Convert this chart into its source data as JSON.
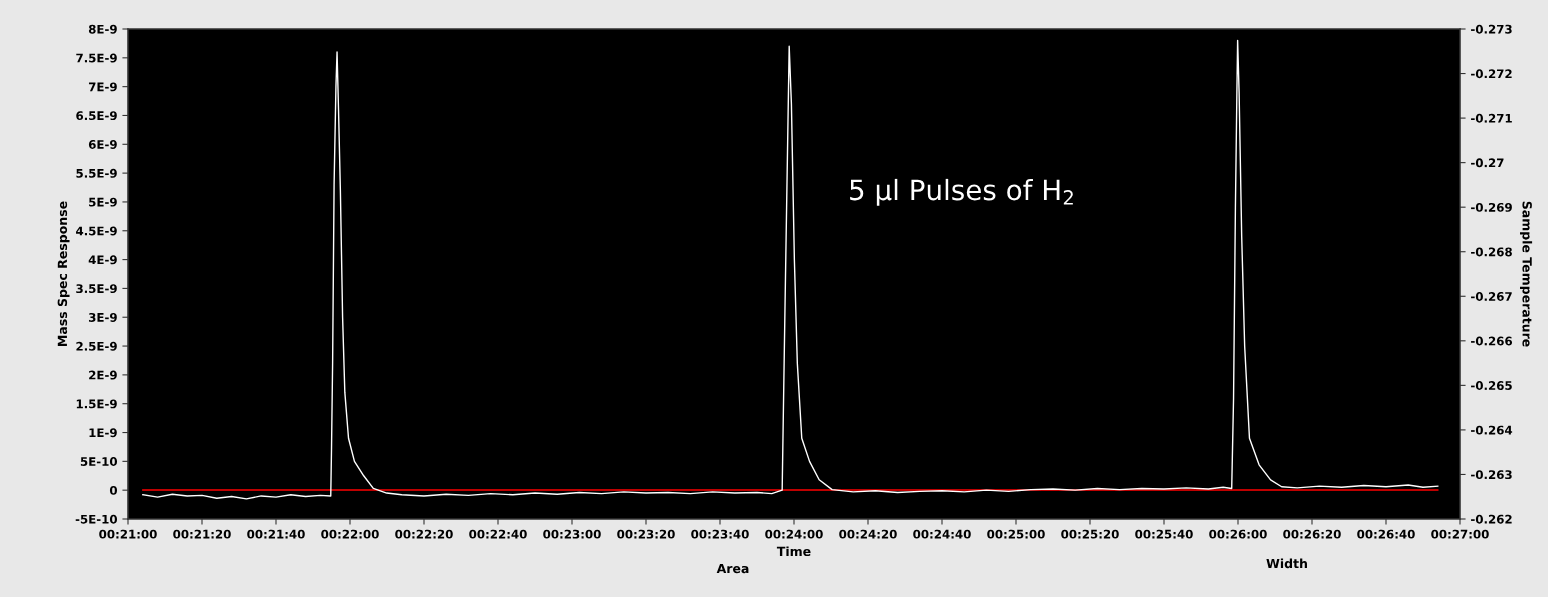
{
  "chart_data": {
    "type": "line",
    "xlabel": "Time",
    "ylabel": "Mass Spec Response",
    "y2label": "Sample Temperature",
    "annotations": [
      "5 μl Pulses of H$_{2}$",
      "Area",
      "Width"
    ],
    "xlim": [
      1260,
      1620
    ],
    "xticks": [
      {
        "value": 1260,
        "label": "00:21:00"
      },
      {
        "value": 1280,
        "label": "00:21:20"
      },
      {
        "value": 1300,
        "label": "00:21:40"
      },
      {
        "value": 1320,
        "label": "00:22:00"
      },
      {
        "value": 1340,
        "label": "00:22:20"
      },
      {
        "value": 1360,
        "label": "00:22:40"
      },
      {
        "value": 1380,
        "label": "00:23:00"
      },
      {
        "value": 1400,
        "label": "00:23:20"
      },
      {
        "value": 1420,
        "label": "00:23:40"
      },
      {
        "value": 1440,
        "label": "00:24:00"
      },
      {
        "value": 1460,
        "label": "00:24:20"
      },
      {
        "value": 1480,
        "label": "00:24:40"
      },
      {
        "value": 1500,
        "label": "00:25:00"
      },
      {
        "value": 1520,
        "label": "00:25:20"
      },
      {
        "value": 1540,
        "label": "00:25:40"
      },
      {
        "value": 1560,
        "label": "00:26:00"
      },
      {
        "value": 1580,
        "label": "00:26:20"
      },
      {
        "value": 1600,
        "label": "00:26:40"
      },
      {
        "value": 1620,
        "label": "00:27:00"
      }
    ],
    "ylim": [
      -5e-10,
      8e-09
    ],
    "yticks": [
      {
        "value": -5e-10,
        "label": "-5E-10"
      },
      {
        "value": 0,
        "label": "0"
      },
      {
        "value": 5e-10,
        "label": "5E-10"
      },
      {
        "value": 1e-09,
        "label": "1E-9"
      },
      {
        "value": 1.5e-09,
        "label": "1.5E-9"
      },
      {
        "value": 2e-09,
        "label": "2E-9"
      },
      {
        "value": 2.5e-09,
        "label": "2.5E-9"
      },
      {
        "value": 3e-09,
        "label": "3E-9"
      },
      {
        "value": 3.5e-09,
        "label": "3.5E-9"
      },
      {
        "value": 4e-09,
        "label": "4E-9"
      },
      {
        "value": 4.5e-09,
        "label": "4.5E-9"
      },
      {
        "value": 5e-09,
        "label": "5E-9"
      },
      {
        "value": 5.5e-09,
        "label": "5.5E-9"
      },
      {
        "value": 6e-09,
        "label": "6E-9"
      },
      {
        "value": 6.5e-09,
        "label": "6.5E-9"
      },
      {
        "value": 7e-09,
        "label": "7E-9"
      },
      {
        "value": 7.5e-09,
        "label": "7.5E-9"
      },
      {
        "value": 8e-09,
        "label": "8E-9"
      }
    ],
    "y2lim": [
      -0.262,
      -0.273
    ],
    "y2ticks": [
      -0.262,
      -0.263,
      -0.264,
      -0.265,
      -0.266,
      -0.267,
      -0.268,
      -0.269,
      -0.27,
      -0.271,
      -0.272,
      -0.273
    ],
    "grid": false,
    "marker": "none",
    "line_style": "solid",
    "series": [
      {
        "color": "#ffffff",
        "x": [
          1264,
          1268,
          1272,
          1276,
          1280,
          1284,
          1288,
          1292,
          1296,
          1300,
          1304,
          1308,
          1312,
          1314.8,
          1315.0,
          1315.3,
          1315.7,
          1316.2,
          1316.5,
          1316.9,
          1317.4,
          1318.0,
          1318.6,
          1319.6,
          1321.2,
          1323.7,
          1326.3,
          1329.9,
          1334,
          1340,
          1346,
          1352,
          1358,
          1364,
          1370,
          1376,
          1382,
          1388,
          1394,
          1400,
          1406,
          1412,
          1418,
          1424,
          1430,
          1434,
          1436.8,
          1437.5,
          1438.0,
          1438.7,
          1439.3,
          1440.1,
          1440.9,
          1442.1,
          1444.2,
          1446.8,
          1450.3,
          1456,
          1462,
          1468,
          1474,
          1480,
          1486,
          1492,
          1498,
          1504,
          1510,
          1516,
          1522,
          1528,
          1534,
          1540,
          1546,
          1552,
          1556,
          1558.3,
          1558.8,
          1559.3,
          1559.7,
          1559.9,
          1560.3,
          1561.0,
          1561.8,
          1563.1,
          1565.7,
          1568.8,
          1571.8,
          1576,
          1582,
          1588,
          1594,
          1600,
          1606,
          1610,
          1614
        ],
        "values": [
          -8e-11,
          -1.2e-10,
          -7e-11,
          -1e-10,
          -9e-11,
          -1.4e-10,
          -1.1e-10,
          -1.5e-10,
          -1e-10,
          -1.2e-10,
          -8e-11,
          -1.1e-10,
          -9e-11,
          -1e-10,
          7e-10,
          2.2e-09,
          5.3e-09,
          7e-09,
          7.6e-09,
          6.6e-09,
          5.2e-09,
          3e-09,
          1.7e-09,
          9e-10,
          5e-10,
          2.5e-10,
          3e-11,
          -5e-11,
          -8e-11,
          -1e-10,
          -7e-11,
          -9e-11,
          -6e-11,
          -8e-11,
          -5e-11,
          -7e-11,
          -4e-11,
          -6e-11,
          -3e-11,
          -5e-11,
          -4e-11,
          -6e-11,
          -3e-11,
          -5e-11,
          -4e-11,
          -6e-11,
          0,
          2.9e-09,
          4.9e-09,
          7.7e-09,
          6.7e-09,
          4e-09,
          2.2e-09,
          9e-10,
          5e-10,
          1.8e-10,
          1e-11,
          -3e-11,
          -1e-11,
          -4e-11,
          -2e-11,
          -1e-11,
          -3e-11,
          0,
          -2e-11,
          1e-11,
          2e-11,
          0,
          3e-11,
          1e-11,
          3e-11,
          2e-11,
          4e-11,
          2e-11,
          5e-11,
          3e-11,
          1.6e-09,
          4.9e-09,
          6.9e-09,
          7.8e-09,
          6.9e-09,
          4.4e-09,
          2.5e-09,
          9e-10,
          4.4e-10,
          1.8e-10,
          6e-11,
          4e-11,
          7e-11,
          5e-11,
          8e-11,
          6e-11,
          9e-11,
          5e-11,
          7e-11
        ]
      },
      {
        "color": "#ff0000",
        "axis": "y2",
        "x": [
          1264,
          1614
        ],
        "values": [
          -0.26265,
          -0.26265
        ]
      }
    ]
  }
}
